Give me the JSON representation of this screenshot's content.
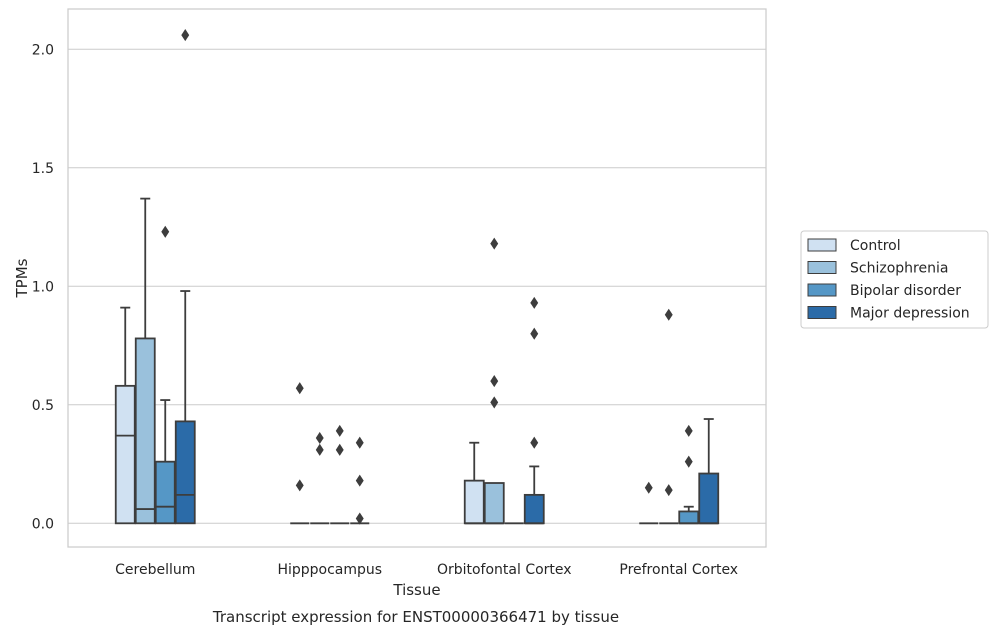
{
  "chart_data": {
    "type": "box",
    "xlabel": "Tissue",
    "ylabel": "TPMs",
    "caption": "Transcript expression for ENST00000366471 by tissue",
    "categories": [
      "Cerebellum",
      "Hipppocampus",
      "Orbitofontal Cortex",
      "Prefrontal Cortex"
    ],
    "ylim": [
      -0.1,
      2.17
    ],
    "yticks": [
      0.0,
      0.5,
      1.0,
      1.5,
      2.0
    ],
    "ytick_labels": [
      "0.0",
      "0.5",
      "1.0",
      "1.5",
      "2.0"
    ],
    "grid": "horizontal",
    "legend_position": "right",
    "series": [
      {
        "name": "Control",
        "color": "#d0e1f2",
        "boxes": [
          {
            "q1": 0.0,
            "median": 0.37,
            "q3": 0.58,
            "whisker_low": 0.0,
            "whisker_high": 0.91,
            "outliers": []
          },
          {
            "q1": 0.0,
            "median": 0.0,
            "q3": 0.0,
            "whisker_low": 0.0,
            "whisker_high": 0.0,
            "outliers": [
              0.57,
              0.16
            ]
          },
          {
            "q1": 0.0,
            "median": 0.0,
            "q3": 0.18,
            "whisker_low": 0.0,
            "whisker_high": 0.34,
            "outliers": []
          },
          {
            "q1": 0.0,
            "median": 0.0,
            "q3": 0.0,
            "whisker_low": 0.0,
            "whisker_high": 0.0,
            "outliers": [
              0.15
            ]
          }
        ]
      },
      {
        "name": "Schizophrenia",
        "color": "#9ac1dc",
        "boxes": [
          {
            "q1": 0.0,
            "median": 0.06,
            "q3": 0.78,
            "whisker_low": 0.0,
            "whisker_high": 1.37,
            "outliers": []
          },
          {
            "q1": 0.0,
            "median": 0.0,
            "q3": 0.0,
            "whisker_low": 0.0,
            "whisker_high": 0.0,
            "outliers": [
              0.36,
              0.31
            ]
          },
          {
            "q1": 0.0,
            "median": 0.0,
            "q3": 0.17,
            "whisker_low": 0.0,
            "whisker_high": 0.17,
            "outliers": [
              1.18,
              0.6,
              0.51
            ]
          },
          {
            "q1": 0.0,
            "median": 0.0,
            "q3": 0.0,
            "whisker_low": 0.0,
            "whisker_high": 0.0,
            "outliers": [
              0.14,
              0.88
            ]
          }
        ]
      },
      {
        "name": "Bipolar disorder",
        "color": "#5597c6",
        "boxes": [
          {
            "q1": 0.0,
            "median": 0.07,
            "q3": 0.26,
            "whisker_low": 0.0,
            "whisker_high": 0.52,
            "outliers": [
              1.23
            ]
          },
          {
            "q1": 0.0,
            "median": 0.0,
            "q3": 0.0,
            "whisker_low": 0.0,
            "whisker_high": 0.0,
            "outliers": [
              0.39,
              0.31
            ]
          },
          {
            "q1": 0.0,
            "median": 0.0,
            "q3": 0.0,
            "whisker_low": 0.0,
            "whisker_high": 0.0,
            "outliers": []
          },
          {
            "q1": 0.0,
            "median": 0.0,
            "q3": 0.05,
            "whisker_low": 0.0,
            "whisker_high": 0.07,
            "outliers": [
              0.39,
              0.26
            ]
          }
        ]
      },
      {
        "name": "Major depression",
        "color": "#2b6ba8",
        "boxes": [
          {
            "q1": 0.0,
            "median": 0.12,
            "q3": 0.43,
            "whisker_low": 0.0,
            "whisker_high": 0.98,
            "outliers": [
              2.06
            ]
          },
          {
            "q1": 0.0,
            "median": 0.0,
            "q3": 0.0,
            "whisker_low": 0.0,
            "whisker_high": 0.0,
            "outliers": [
              0.34,
              0.18,
              0.02
            ]
          },
          {
            "q1": 0.0,
            "median": 0.0,
            "q3": 0.12,
            "whisker_low": 0.0,
            "whisker_high": 0.24,
            "outliers": [
              0.93,
              0.8,
              0.34
            ]
          },
          {
            "q1": 0.0,
            "median": 0.0,
            "q3": 0.21,
            "whisker_low": 0.0,
            "whisker_high": 0.44,
            "outliers": []
          }
        ]
      }
    ]
  }
}
